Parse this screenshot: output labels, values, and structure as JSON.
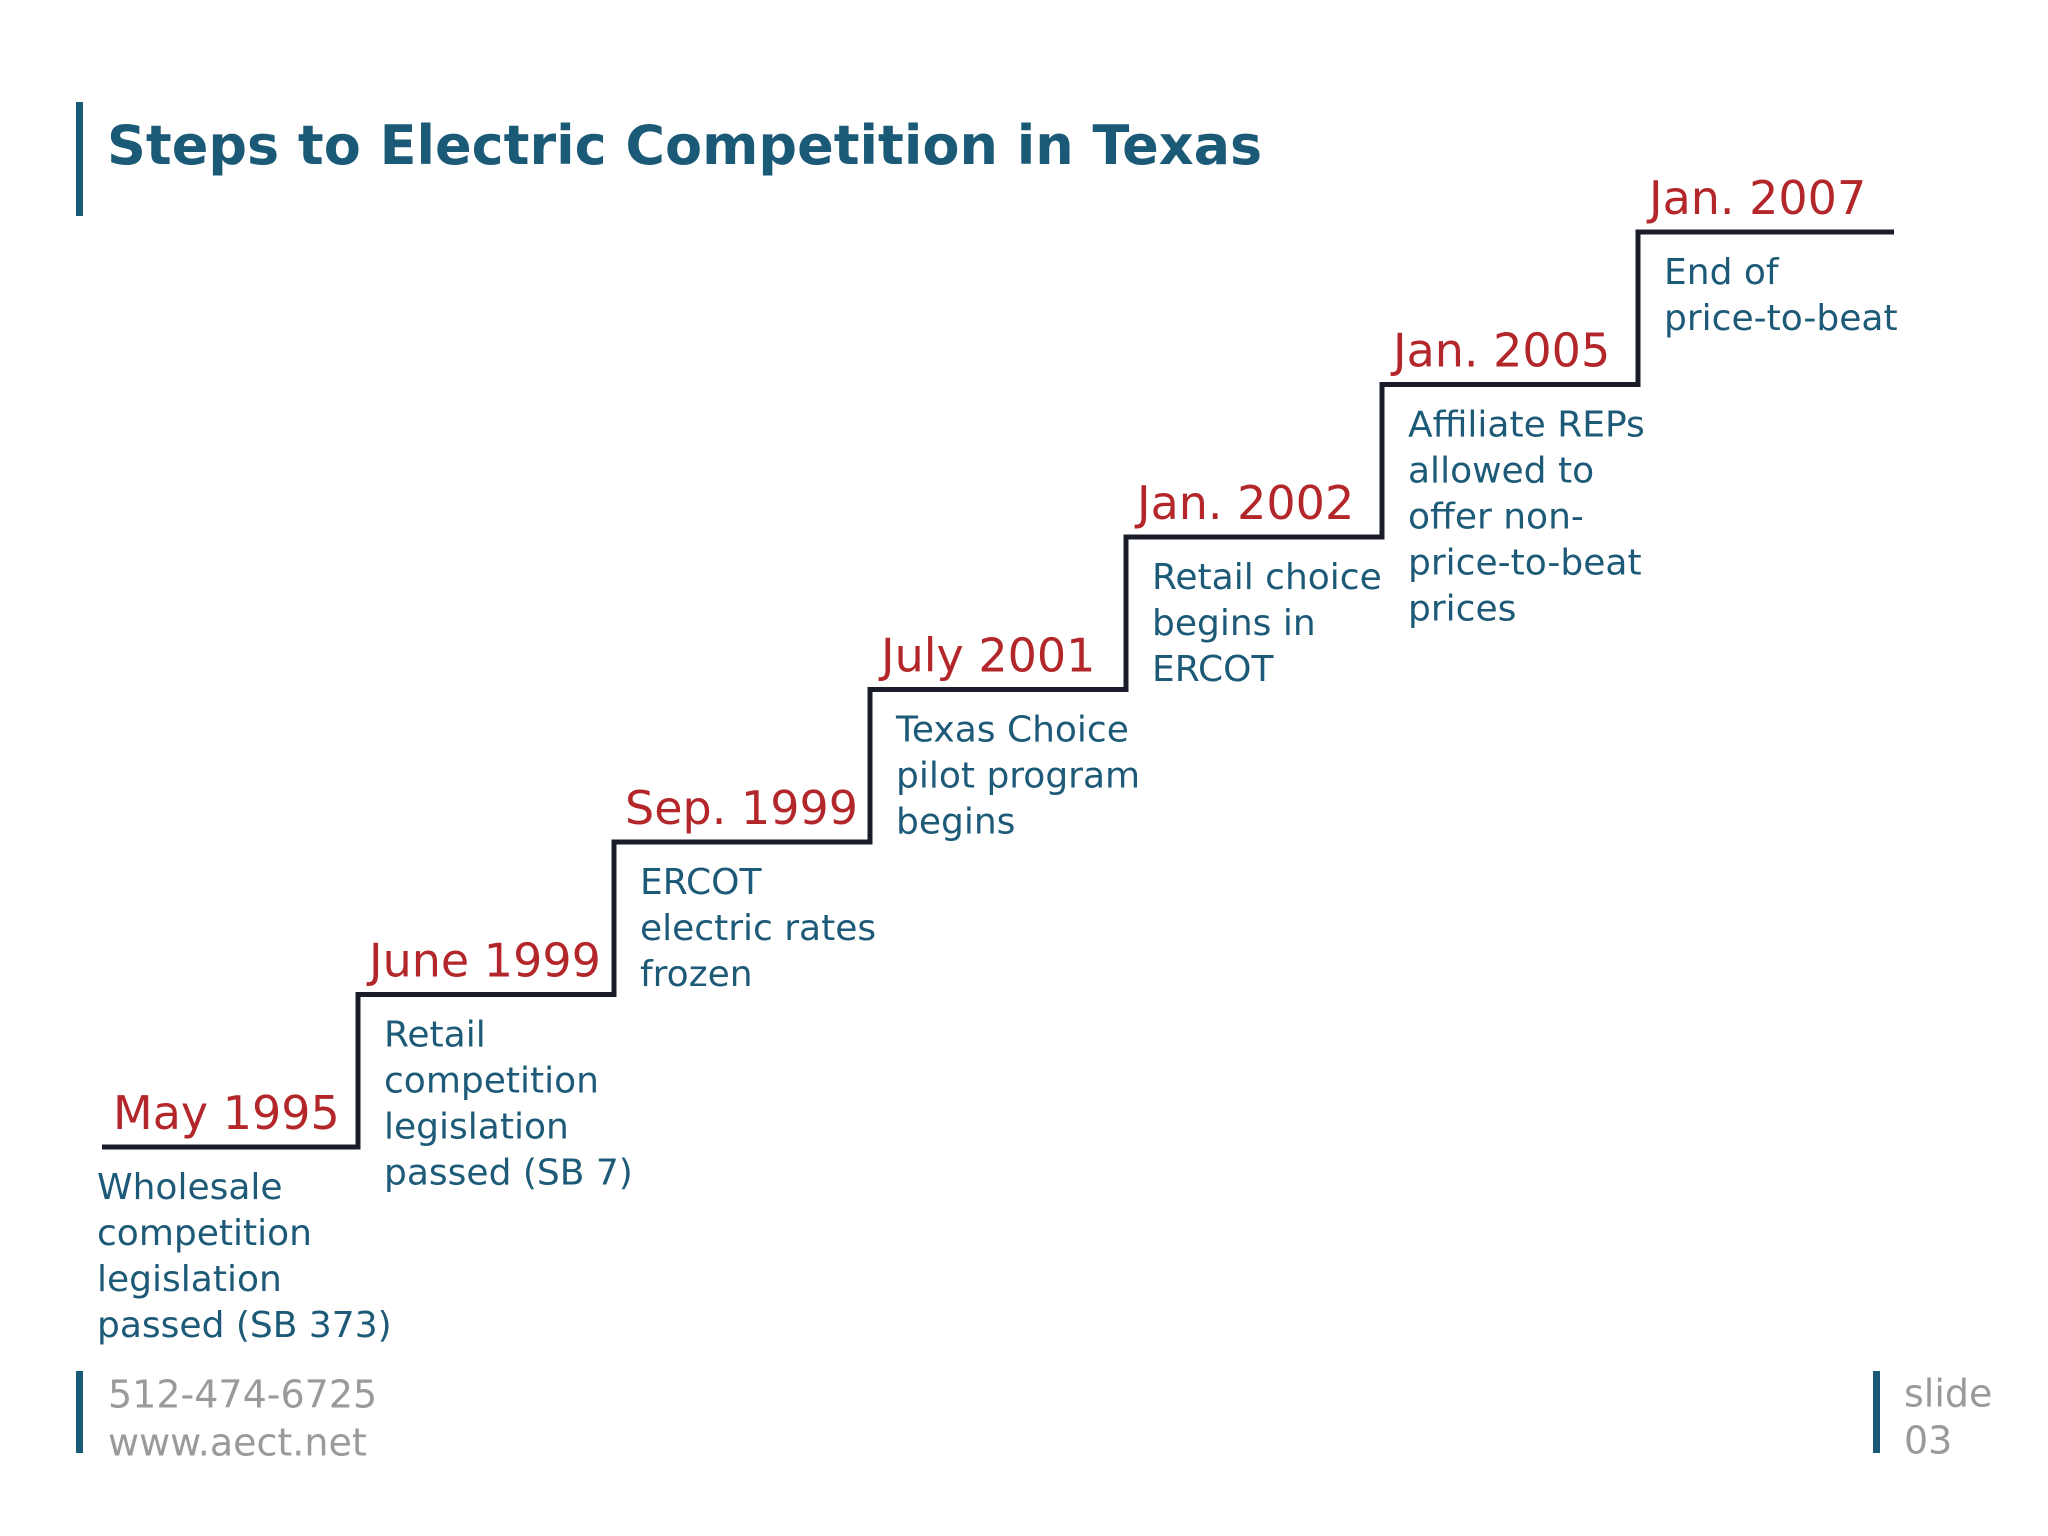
{
  "title": "Steps to Electric Competition in Texas",
  "steps": [
    {
      "date": "May 1995",
      "description": [
        "Wholesale",
        "competition",
        "legislation",
        "passed (SB 373)"
      ]
    },
    {
      "date": "June 1999",
      "description": [
        "Retail",
        "competition",
        "legislation",
        "passed (SB 7)"
      ]
    },
    {
      "date": "Sep. 1999",
      "description": [
        "ERCOT",
        "electric rates",
        "frozen"
      ]
    },
    {
      "date": "July 2001",
      "description": [
        "Texas Choice",
        "pilot program",
        "begins"
      ]
    },
    {
      "date": "Jan. 2002",
      "description": [
        "Retail choice",
        "begins in",
        "ERCOT"
      ]
    },
    {
      "date": "Jan. 2005",
      "description": [
        "Affiliate REPs",
        "allowed to",
        "offer non-",
        "price-to-beat",
        "prices"
      ]
    },
    {
      "date": "Jan. 2007",
      "description": [
        "End of",
        "price-to-beat"
      ]
    }
  ],
  "footer": {
    "phone": "512-474-6725",
    "website": "www.aect.net"
  },
  "slide": {
    "label": "slide",
    "number": "03"
  }
}
